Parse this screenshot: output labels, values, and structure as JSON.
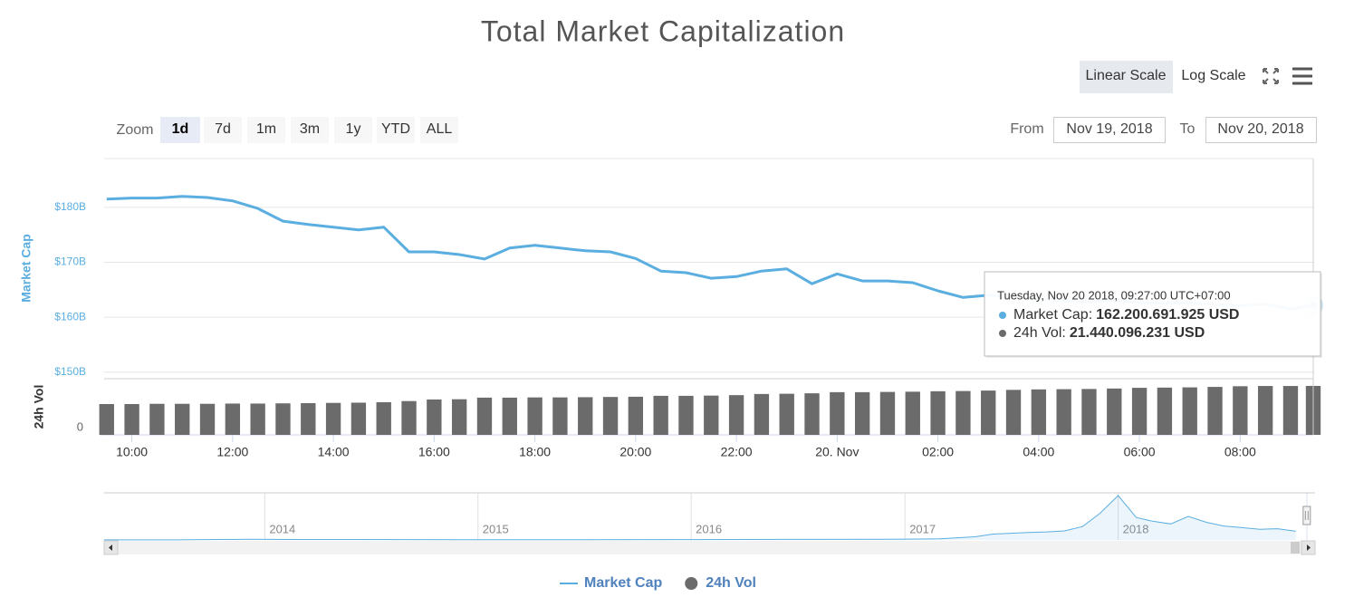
{
  "chart_data": {
    "type": "line",
    "title": "Total Market Capitalization",
    "x": [
      "2018-11-19T09:30",
      "2018-11-19T10:00",
      "2018-11-19T10:30",
      "2018-11-19T11:00",
      "2018-11-19T11:30",
      "2018-11-19T12:00",
      "2018-11-19T12:30",
      "2018-11-19T13:00",
      "2018-11-19T13:30",
      "2018-11-19T14:00",
      "2018-11-19T14:30",
      "2018-11-19T15:00",
      "2018-11-19T15:30",
      "2018-11-19T16:00",
      "2018-11-19T16:30",
      "2018-11-19T17:00",
      "2018-11-19T17:30",
      "2018-11-19T18:00",
      "2018-11-19T18:30",
      "2018-11-19T19:00",
      "2018-11-19T19:30",
      "2018-11-19T20:00",
      "2018-11-19T20:30",
      "2018-11-19T21:00",
      "2018-11-19T21:30",
      "2018-11-19T22:00",
      "2018-11-19T22:30",
      "2018-11-19T23:00",
      "2018-11-19T23:30",
      "2018-11-20T00:00",
      "2018-11-20T00:30",
      "2018-11-20T01:00",
      "2018-11-20T01:30",
      "2018-11-20T02:00",
      "2018-11-20T02:30",
      "2018-11-20T03:00",
      "2018-11-20T03:30",
      "2018-11-20T04:00",
      "2018-11-20T04:30",
      "2018-11-20T05:00",
      "2018-11-20T05:30",
      "2018-11-20T06:00",
      "2018-11-20T06:30",
      "2018-11-20T07:00",
      "2018-11-20T07:30",
      "2018-11-20T08:00",
      "2018-11-20T08:30",
      "2018-11-20T09:00",
      "2018-11-20T09:27"
    ],
    "xlim": [
      "2018-11-19T09:27",
      "2018-11-20T09:27"
    ],
    "xticks": [
      {
        "value": "2018-11-19T10:00",
        "label": "10:00"
      },
      {
        "value": "2018-11-19T12:00",
        "label": "12:00"
      },
      {
        "value": "2018-11-19T14:00",
        "label": "14:00"
      },
      {
        "value": "2018-11-19T16:00",
        "label": "16:00"
      },
      {
        "value": "2018-11-19T18:00",
        "label": "18:00"
      },
      {
        "value": "2018-11-19T20:00",
        "label": "20:00"
      },
      {
        "value": "2018-11-19T22:00",
        "label": "22:00"
      },
      {
        "value": "2018-11-20T00:00",
        "label": "20. Nov"
      },
      {
        "value": "2018-11-20T02:00",
        "label": "02:00"
      },
      {
        "value": "2018-11-20T04:00",
        "label": "04:00"
      },
      {
        "value": "2018-11-20T06:00",
        "label": "06:00"
      },
      {
        "value": "2018-11-20T08:00",
        "label": "08:00"
      }
    ],
    "ylabel": "Market Cap",
    "ylim": [
      148800000000,
      188900000000
    ],
    "yticks": [
      {
        "value": 150000000000,
        "label": "$150B"
      },
      {
        "value": 160000000000,
        "label": "$160B"
      },
      {
        "value": 170000000000,
        "label": "$170B"
      },
      {
        "value": 180000000000,
        "label": "$180B"
      }
    ],
    "y2label": "24h Vol",
    "y2lim": [
      0,
      24600000000
    ],
    "y2ticks": [
      0
    ],
    "scale": "linear",
    "grid": true,
    "legend": "bottom",
    "series": [
      {
        "name": "Market Cap",
        "type": "line",
        "color": "#5aaee0",
        "values": [
          181500000000,
          181700000000,
          181700000000,
          182000000000,
          181800000000,
          181200000000,
          179800000000,
          177500000000,
          176900000000,
          176400000000,
          175900000000,
          176400000000,
          171900000000,
          171900000000,
          171400000000,
          170600000000,
          172600000000,
          173100000000,
          172600000000,
          172100000000,
          171900000000,
          170700000000,
          168400000000,
          168100000000,
          167100000000,
          167400000000,
          168400000000,
          168800000000,
          166100000000,
          167900000000,
          166600000000,
          166600000000,
          166300000000,
          164800000000,
          163600000000,
          164000000000,
          163500000000,
          163300000000,
          163000000000,
          162800000000,
          163100000000,
          162700000000,
          162500000000,
          162600000000,
          162300000000,
          162100000000,
          162400000000,
          161500000000,
          162200691925
        ],
        "value_labels": [
          null,
          null,
          null,
          null,
          null,
          null,
          null,
          null,
          null,
          null,
          null,
          null,
          null,
          null,
          null,
          null,
          null,
          null,
          null,
          null,
          null,
          null,
          null,
          null,
          null,
          null,
          null,
          null,
          null,
          null,
          null,
          null,
          null,
          null,
          null,
          null,
          null,
          null,
          null,
          null,
          null,
          null,
          null,
          null,
          null,
          null,
          null,
          null,
          "162.200.691.925 USD"
        ]
      },
      {
        "name": "24h Vol",
        "type": "bar",
        "axis": "y2",
        "color": "#6b6b6b",
        "values": [
          13500000000,
          13500000000,
          13600000000,
          13600000000,
          13600000000,
          13700000000,
          13700000000,
          13800000000,
          13900000000,
          14000000000,
          14100000000,
          14300000000,
          14800000000,
          15500000000,
          15600000000,
          16300000000,
          16300000000,
          16400000000,
          16400000000,
          16500000000,
          16600000000,
          16700000000,
          17100000000,
          17100000000,
          17200000000,
          17400000000,
          17900000000,
          18000000000,
          18200000000,
          18700000000,
          18700000000,
          18800000000,
          18900000000,
          19100000000,
          19200000000,
          19400000000,
          19700000000,
          19900000000,
          20000000000,
          20100000000,
          20300000000,
          20600000000,
          20700000000,
          20800000000,
          21000000000,
          21300000000,
          21400000000,
          21400000000,
          21440096231
        ],
        "value_labels": [
          null,
          null,
          null,
          null,
          null,
          null,
          null,
          null,
          null,
          null,
          null,
          null,
          null,
          null,
          null,
          null,
          null,
          null,
          null,
          null,
          null,
          null,
          null,
          null,
          null,
          null,
          null,
          null,
          null,
          null,
          null,
          null,
          null,
          null,
          null,
          null,
          null,
          null,
          null,
          null,
          null,
          null,
          null,
          null,
          null,
          null,
          null,
          null,
          "21.440.096.231 USD"
        ]
      }
    ],
    "tooltip": {
      "header": "Tuesday, Nov 20 2018, 09:27:00 UTC+07:00",
      "items": [
        "Market Cap:",
        "24h Vol:"
      ]
    },
    "navigator": {
      "type": "area",
      "x": [
        "2013-04",
        "2013-08",
        "2013-12",
        "2014-03",
        "2014-06",
        "2014-12",
        "2015-06",
        "2015-12",
        "2016-06",
        "2016-12",
        "2017-03",
        "2017-05",
        "2017-06",
        "2017-08",
        "2017-09",
        "2017-10",
        "2017-11",
        "2017-12",
        "2018-01",
        "2018-02",
        "2018-03",
        "2018-04",
        "2018-05",
        "2018-06",
        "2018-07",
        "2018-08",
        "2018-09",
        "2018-10",
        "2018-11"
      ],
      "values": [
        1500000000,
        1200000000,
        12000000000,
        8000000000,
        8000000000,
        4000000000,
        4000000000,
        6500000000,
        10000000000,
        14000000000,
        20000000000,
        60000000000,
        110000000000,
        140000000000,
        150000000000,
        170000000000,
        250000000000,
        500000000000,
        830000000000,
        420000000000,
        350000000000,
        300000000000,
        440000000000,
        330000000000,
        260000000000,
        230000000000,
        200000000000,
        210000000000,
        162000000000
      ],
      "xlim": [
        "2013-04",
        "2018-12"
      ],
      "xticks": [
        "2014",
        "2015",
        "2016",
        "2017",
        "2018"
      ],
      "ylim": [
        0,
        880000000000
      ]
    }
  },
  "ui": {
    "zoom_label": "Zoom",
    "zoom_buttons": [
      "1d",
      "7d",
      "1m",
      "3m",
      "1y",
      "YTD",
      "ALL"
    ],
    "from_label": "From",
    "from": "Nov 19, 2018",
    "to_label": "To",
    "to": "Nov 20, 2018",
    "scale_buttons": [
      "Linear Scale",
      "Log Scale"
    ]
  }
}
